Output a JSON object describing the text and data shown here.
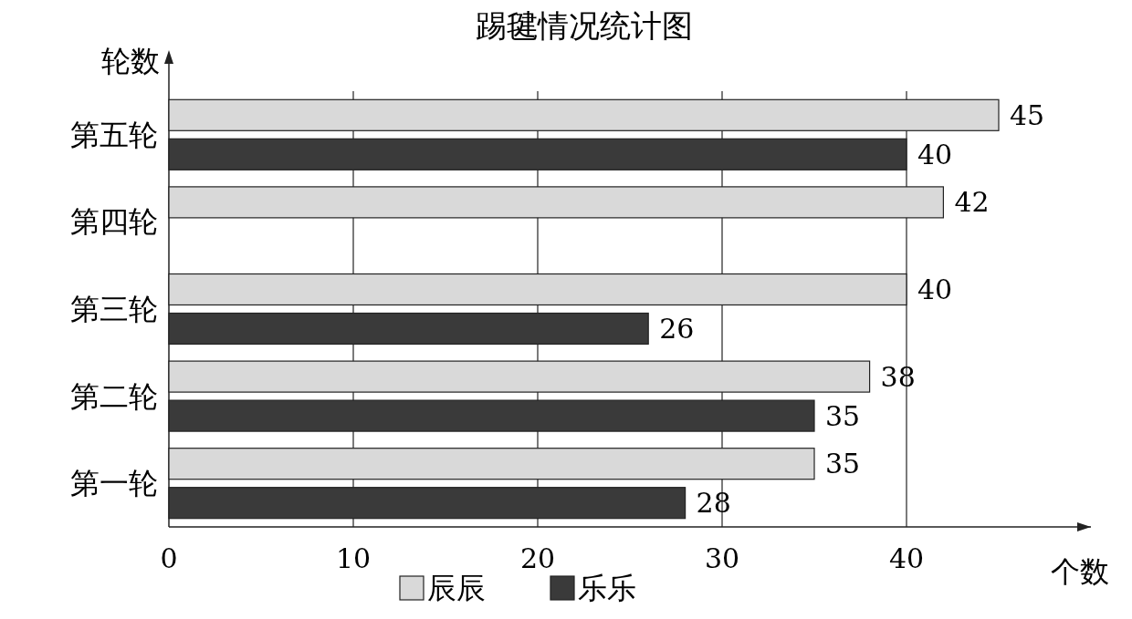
{
  "chart_data": {
    "type": "bar",
    "orientation": "horizontal",
    "title": "踢毽情况统计图",
    "xlabel": "个数",
    "ylabel": "轮数",
    "categories": [
      "第五轮",
      "第四轮",
      "第三轮",
      "第二轮",
      "第一轮"
    ],
    "series": [
      {
        "name": "辰辰",
        "color": "#d9d9d9",
        "values": [
          45,
          42,
          40,
          38,
          35
        ]
      },
      {
        "name": "乐乐",
        "color": "#3a3a3a",
        "values": [
          40,
          null,
          26,
          35,
          28
        ]
      }
    ],
    "xlim": [
      0,
      50
    ],
    "xticks": [
      0,
      10,
      20,
      30,
      40
    ],
    "grid": "x",
    "legend": "bottom",
    "data_labels": true
  }
}
